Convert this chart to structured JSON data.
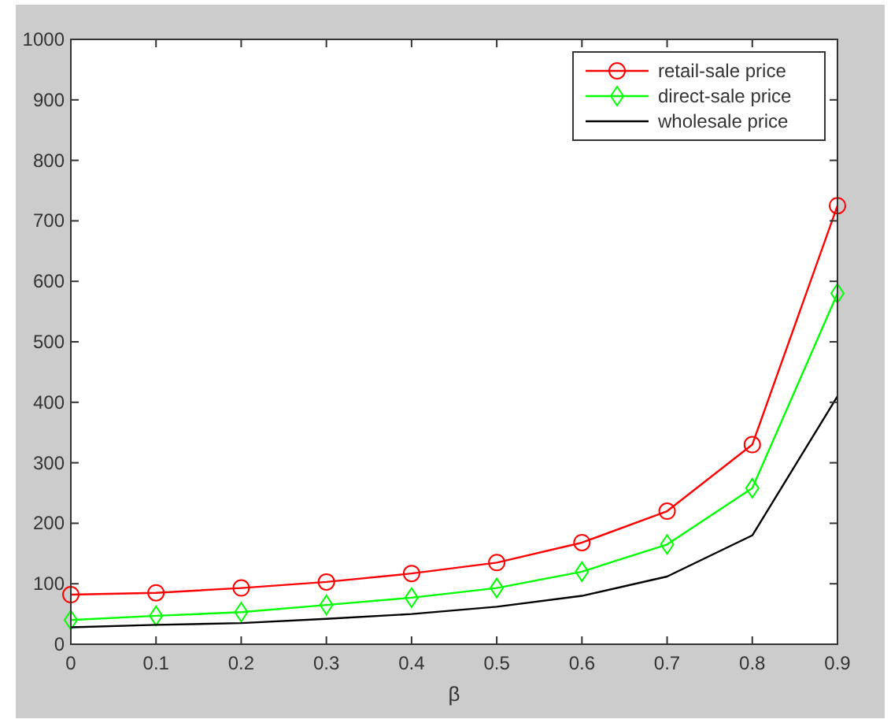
{
  "chart_data": {
    "type": "line",
    "xlabel": "β",
    "x": [
      0,
      0.1,
      0.2,
      0.3,
      0.4,
      0.5,
      0.6,
      0.7,
      0.8,
      0.9
    ],
    "xlim": [
      0,
      0.9
    ],
    "xticks": [
      0,
      0.1,
      0.2,
      0.3,
      0.4,
      0.5,
      0.6,
      0.7,
      0.8,
      0.9
    ],
    "ylim": [
      0,
      1000
    ],
    "yticks": [
      0,
      100,
      200,
      300,
      400,
      500,
      600,
      700,
      800,
      900,
      1000
    ],
    "grid": false,
    "legend": "top right",
    "series": [
      {
        "name": "retail-sale price",
        "color": "#ff0000",
        "marker": "circle",
        "values": [
          82,
          85,
          93,
          103,
          117,
          135,
          168,
          220,
          330,
          725
        ]
      },
      {
        "name": "direct-sale price",
        "color": "#00ff00",
        "marker": "diamond",
        "values": [
          40,
          47,
          53,
          65,
          77,
          93,
          120,
          165,
          258,
          580
        ]
      },
      {
        "name": "wholesale price",
        "color": "#000000",
        "marker": "none",
        "values": [
          28,
          32,
          35,
          42,
          50,
          62,
          80,
          112,
          180,
          410
        ]
      }
    ]
  }
}
